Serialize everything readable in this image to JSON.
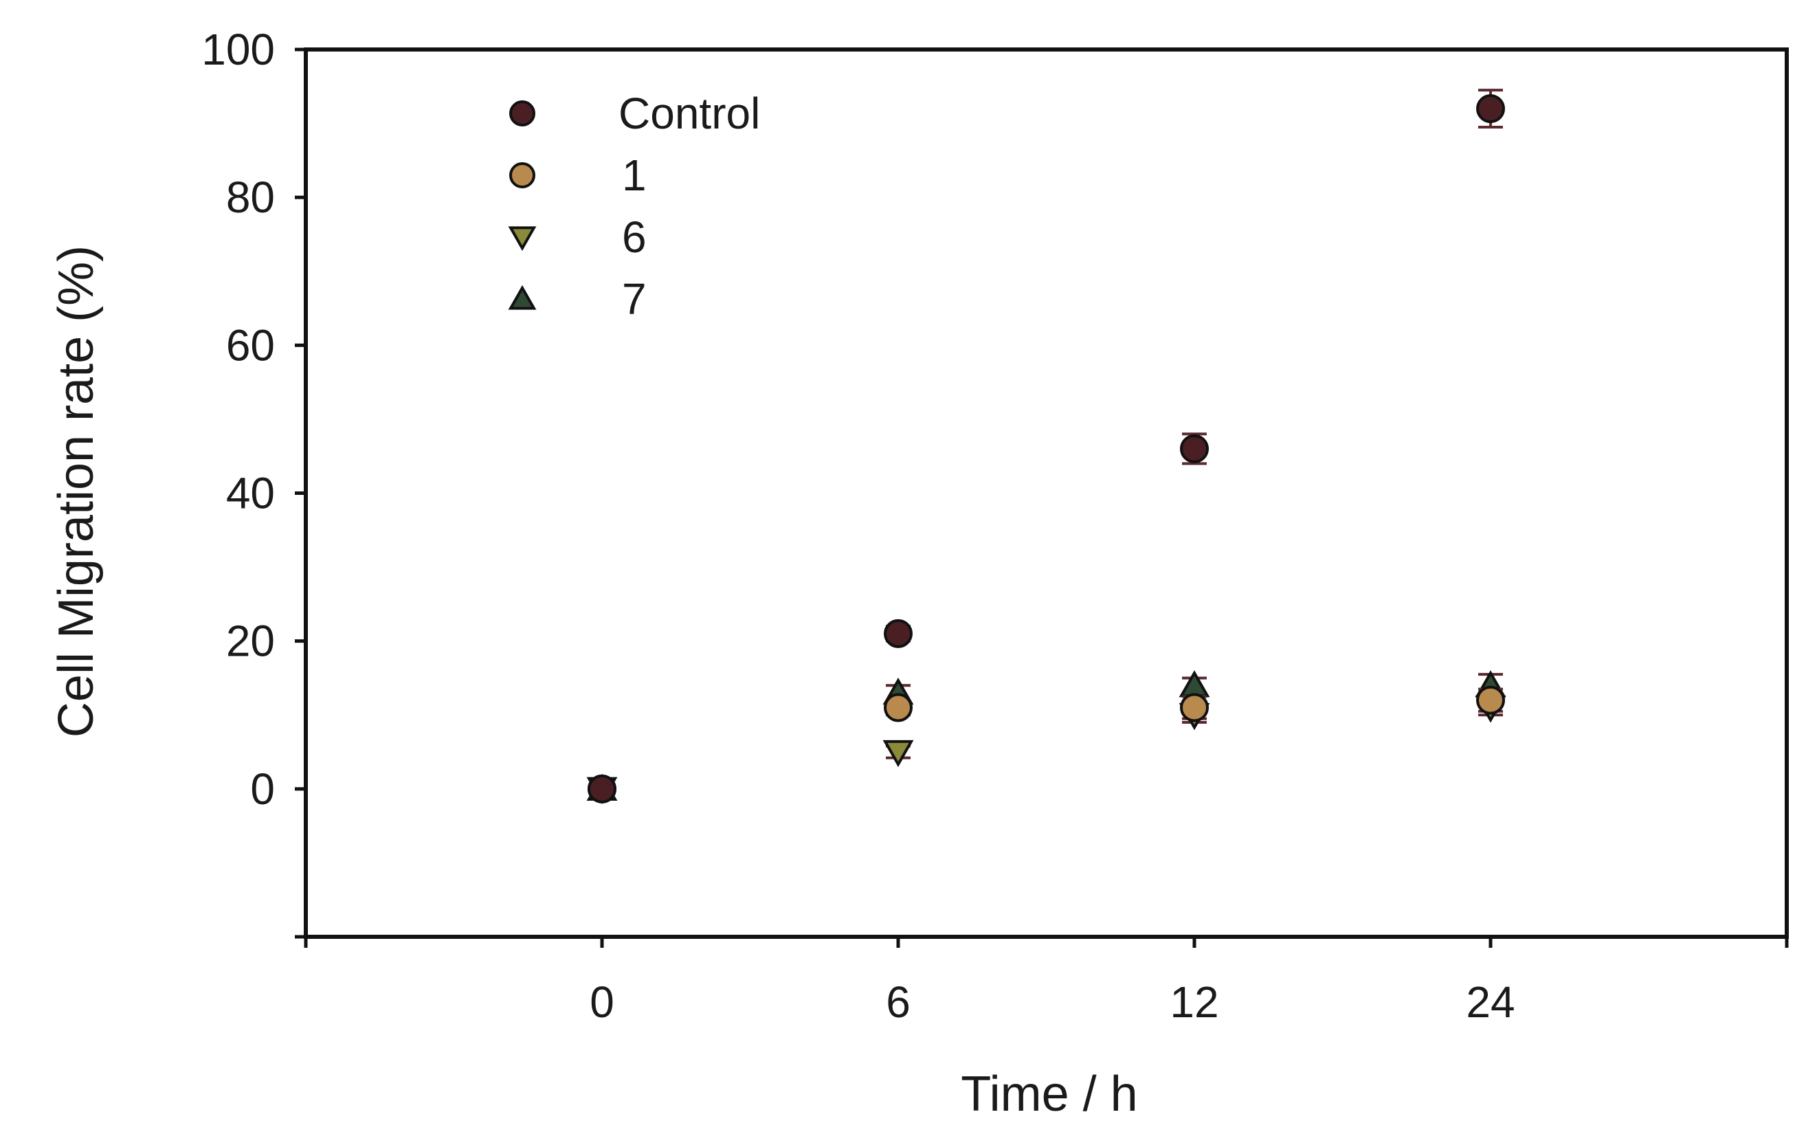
{
  "chart_data": {
    "type": "scatter",
    "title": "",
    "xlabel": "Time / h",
    "ylabel": "Cell Migration rate (%)",
    "x_categories": [
      "0",
      "6",
      "12",
      "24"
    ],
    "x_positions": [
      1,
      2,
      3,
      4
    ],
    "xlim": [
      0,
      5
    ],
    "ylim": [
      -20,
      100
    ],
    "yticks": [
      0,
      20,
      40,
      60,
      80,
      100
    ],
    "grid": false,
    "legend_position": "top-left",
    "series": [
      {
        "name": "Control",
        "marker": "circle",
        "color": "#4a1f24",
        "values": [
          0,
          21,
          46,
          92
        ],
        "errors": [
          1,
          1,
          2,
          2.5
        ]
      },
      {
        "name": "1",
        "marker": "circle",
        "color": "#b98a4e",
        "values": [
          0,
          11,
          11,
          12
        ],
        "errors": [
          1,
          1,
          1.5,
          1.5
        ]
      },
      {
        "name": "6",
        "marker": "triangle-down",
        "color": "#8a8a3a",
        "values": [
          0,
          5,
          10,
          11
        ],
        "errors": [
          0.5,
          0.8,
          1,
          1
        ]
      },
      {
        "name": "7",
        "marker": "triangle-up",
        "color": "#2f4a34",
        "values": [
          0,
          13,
          14,
          14
        ],
        "errors": [
          0.5,
          1,
          1,
          1.5
        ]
      }
    ]
  }
}
